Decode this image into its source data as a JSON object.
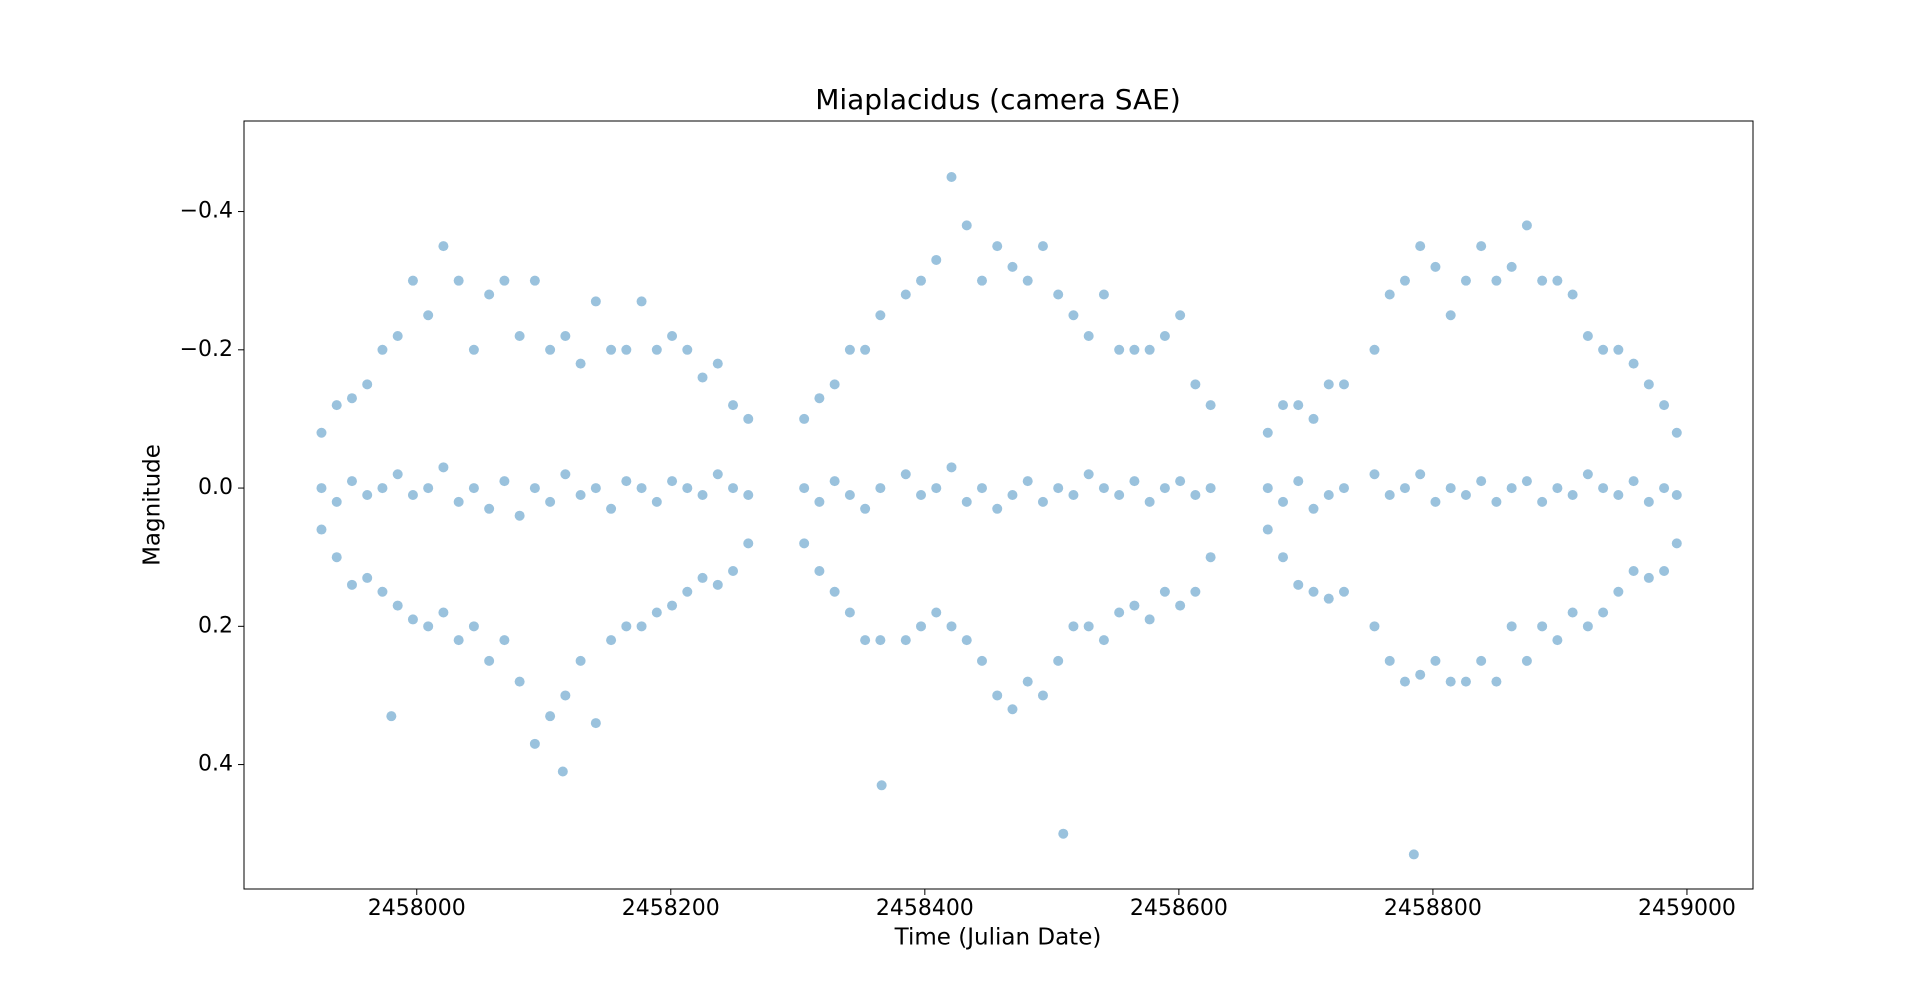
{
  "chart_data": {
    "type": "scatter",
    "title": "Miaplacidus (camera SAE)",
    "x_label": "Time (Julian Date)",
    "y_label": "Magnitude",
    "xlim": [
      2457864,
      2459052
    ],
    "ylim": [
      0.58,
      -0.531
    ],
    "xticks": [
      2458000,
      2458200,
      2458400,
      2458600,
      2458800,
      2459000
    ],
    "yticks": [
      {
        "value": -0.4,
        "label": "−0.4"
      },
      {
        "value": -0.2,
        "label": "−0.2"
      },
      {
        "value": 0,
        "label": "0.0"
      },
      0.2,
      0.4
    ],
    "color": "#1f77b4",
    "x": [
      2457925,
      2457937,
      2457949,
      2457961,
      2457973,
      2457985,
      2457997,
      2458009,
      2458021,
      2458033,
      2458045,
      2458057,
      2458069,
      2458081,
      2458093,
      2458105,
      2458117,
      2458129,
      2458141,
      2458153,
      2458165,
      2458177,
      2458189,
      2458201,
      2458213,
      2458225,
      2458237,
      2458249,
      2458261,
      2457925,
      2457937,
      2457949,
      2457961,
      2457973,
      2457985,
      2457997,
      2458009,
      2458021,
      2458033,
      2458045,
      2458057,
      2458069,
      2458081,
      2458093,
      2458105,
      2458117,
      2458129,
      2458141,
      2458153,
      2458165,
      2458177,
      2458189,
      2458201,
      2458213,
      2458225,
      2458237,
      2458249,
      2458261,
      2457925,
      2457937,
      2457949,
      2457961,
      2457973,
      2457985,
      2457997,
      2458009,
      2458021,
      2458033,
      2458045,
      2458057,
      2458069,
      2458081,
      2458093,
      2458105,
      2458117,
      2458129,
      2458141,
      2458153,
      2458165,
      2458177,
      2458189,
      2458201,
      2458213,
      2458225,
      2458237,
      2458249,
      2458261,
      2458305,
      2458317,
      2458329,
      2458341,
      2458353,
      2458365,
      2458385,
      2458397,
      2458409,
      2458421,
      2458433,
      2458445,
      2458457,
      2458469,
      2458481,
      2458493,
      2458505,
      2458517,
      2458529,
      2458541,
      2458553,
      2458565,
      2458577,
      2458589,
      2458601,
      2458613,
      2458625,
      2458305,
      2458317,
      2458329,
      2458341,
      2458353,
      2458365,
      2458385,
      2458397,
      2458409,
      2458421,
      2458433,
      2458445,
      2458457,
      2458469,
      2458481,
      2458493,
      2458505,
      2458517,
      2458529,
      2458541,
      2458553,
      2458565,
      2458577,
      2458589,
      2458601,
      2458613,
      2458625,
      2458305,
      2458317,
      2458329,
      2458341,
      2458353,
      2458365,
      2458385,
      2458397,
      2458409,
      2458421,
      2458433,
      2458445,
      2458457,
      2458469,
      2458481,
      2458493,
      2458505,
      2458517,
      2458529,
      2458541,
      2458553,
      2458565,
      2458577,
      2458589,
      2458601,
      2458613,
      2458625,
      2458670,
      2458682,
      2458694,
      2458706,
      2458718,
      2458730,
      2458754,
      2458766,
      2458778,
      2458790,
      2458802,
      2458814,
      2458826,
      2458838,
      2458850,
      2458862,
      2458874,
      2458886,
      2458898,
      2458910,
      2458922,
      2458934,
      2458946,
      2458958,
      2458970,
      2458982,
      2458992,
      2458670,
      2458682,
      2458694,
      2458706,
      2458718,
      2458730,
      2458754,
      2458766,
      2458778,
      2458790,
      2458802,
      2458814,
      2458826,
      2458838,
      2458850,
      2458862,
      2458874,
      2458886,
      2458898,
      2458910,
      2458922,
      2458934,
      2458946,
      2458958,
      2458970,
      2458982,
      2458992,
      2458670,
      2458682,
      2458694,
      2458706,
      2458718,
      2458730,
      2458754,
      2458766,
      2458778,
      2458790,
      2458802,
      2458814,
      2458826,
      2458838,
      2458850,
      2458862,
      2458874,
      2458886,
      2458898,
      2458910,
      2458922,
      2458934,
      2458946,
      2458958,
      2458970,
      2458982,
      2458992,
      2458366,
      2458509,
      2458785,
      2457980,
      2458115
    ],
    "y": [
      -0.08,
      -0.12,
      -0.13,
      -0.15,
      -0.2,
      -0.22,
      -0.3,
      -0.25,
      -0.35,
      -0.3,
      -0.2,
      -0.28,
      -0.3,
      -0.22,
      -0.3,
      -0.2,
      -0.22,
      -0.18,
      -0.27,
      -0.2,
      -0.2,
      -0.27,
      -0.2,
      -0.22,
      -0.2,
      -0.16,
      -0.18,
      -0.12,
      -0.1,
      0.0,
      0.02,
      -0.01,
      0.01,
      0.0,
      -0.02,
      0.01,
      0.0,
      -0.03,
      0.02,
      0.0,
      0.03,
      -0.01,
      0.04,
      0.0,
      0.02,
      -0.02,
      0.01,
      0.0,
      0.03,
      -0.01,
      0.0,
      0.02,
      -0.01,
      0.0,
      0.01,
      -0.02,
      0.0,
      0.01,
      0.06,
      0.1,
      0.14,
      0.13,
      0.15,
      0.17,
      0.19,
      0.2,
      0.18,
      0.22,
      0.2,
      0.25,
      0.22,
      0.28,
      0.37,
      0.33,
      0.3,
      0.25,
      0.34,
      0.22,
      0.2,
      0.2,
      0.18,
      0.17,
      0.15,
      0.13,
      0.14,
      0.12,
      0.08,
      -0.1,
      -0.13,
      -0.15,
      -0.2,
      -0.2,
      -0.25,
      -0.28,
      -0.3,
      -0.33,
      -0.45,
      -0.38,
      -0.3,
      -0.35,
      -0.32,
      -0.3,
      -0.35,
      -0.28,
      -0.25,
      -0.22,
      -0.28,
      -0.2,
      -0.2,
      -0.2,
      -0.22,
      -0.25,
      -0.15,
      -0.12,
      0.0,
      0.02,
      -0.01,
      0.01,
      0.03,
      0.0,
      -0.02,
      0.01,
      0.0,
      -0.03,
      0.02,
      0.0,
      0.03,
      0.01,
      -0.01,
      0.02,
      0.0,
      0.01,
      -0.02,
      0.0,
      0.01,
      -0.01,
      0.02,
      0.0,
      -0.01,
      0.01,
      0.0,
      0.08,
      0.12,
      0.15,
      0.18,
      0.22,
      0.22,
      0.22,
      0.2,
      0.18,
      0.2,
      0.22,
      0.25,
      0.3,
      0.32,
      0.28,
      0.3,
      0.25,
      0.2,
      0.2,
      0.22,
      0.18,
      0.17,
      0.19,
      0.15,
      0.17,
      0.15,
      0.1,
      -0.08,
      -0.12,
      -0.12,
      -0.1,
      -0.15,
      -0.15,
      -0.2,
      -0.28,
      -0.3,
      -0.35,
      -0.32,
      -0.25,
      -0.3,
      -0.35,
      -0.3,
      -0.32,
      -0.38,
      -0.3,
      -0.3,
      -0.28,
      -0.22,
      -0.2,
      -0.2,
      -0.18,
      -0.15,
      -0.12,
      -0.08,
      0.0,
      0.02,
      -0.01,
      0.03,
      0.01,
      0.0,
      -0.02,
      0.01,
      0.0,
      -0.02,
      0.02,
      0.0,
      0.01,
      -0.01,
      0.02,
      0.0,
      -0.01,
      0.02,
      0.0,
      0.01,
      -0.02,
      0.0,
      0.01,
      -0.01,
      0.02,
      0.0,
      0.01,
      0.06,
      0.1,
      0.14,
      0.15,
      0.16,
      0.15,
      0.2,
      0.25,
      0.28,
      0.27,
      0.25,
      0.28,
      0.28,
      0.25,
      0.28,
      0.2,
      0.25,
      0.2,
      0.22,
      0.18,
      0.2,
      0.18,
      0.15,
      0.12,
      0.13,
      0.12,
      0.08,
      0.43,
      0.5,
      0.53,
      0.33,
      0.41
    ]
  }
}
